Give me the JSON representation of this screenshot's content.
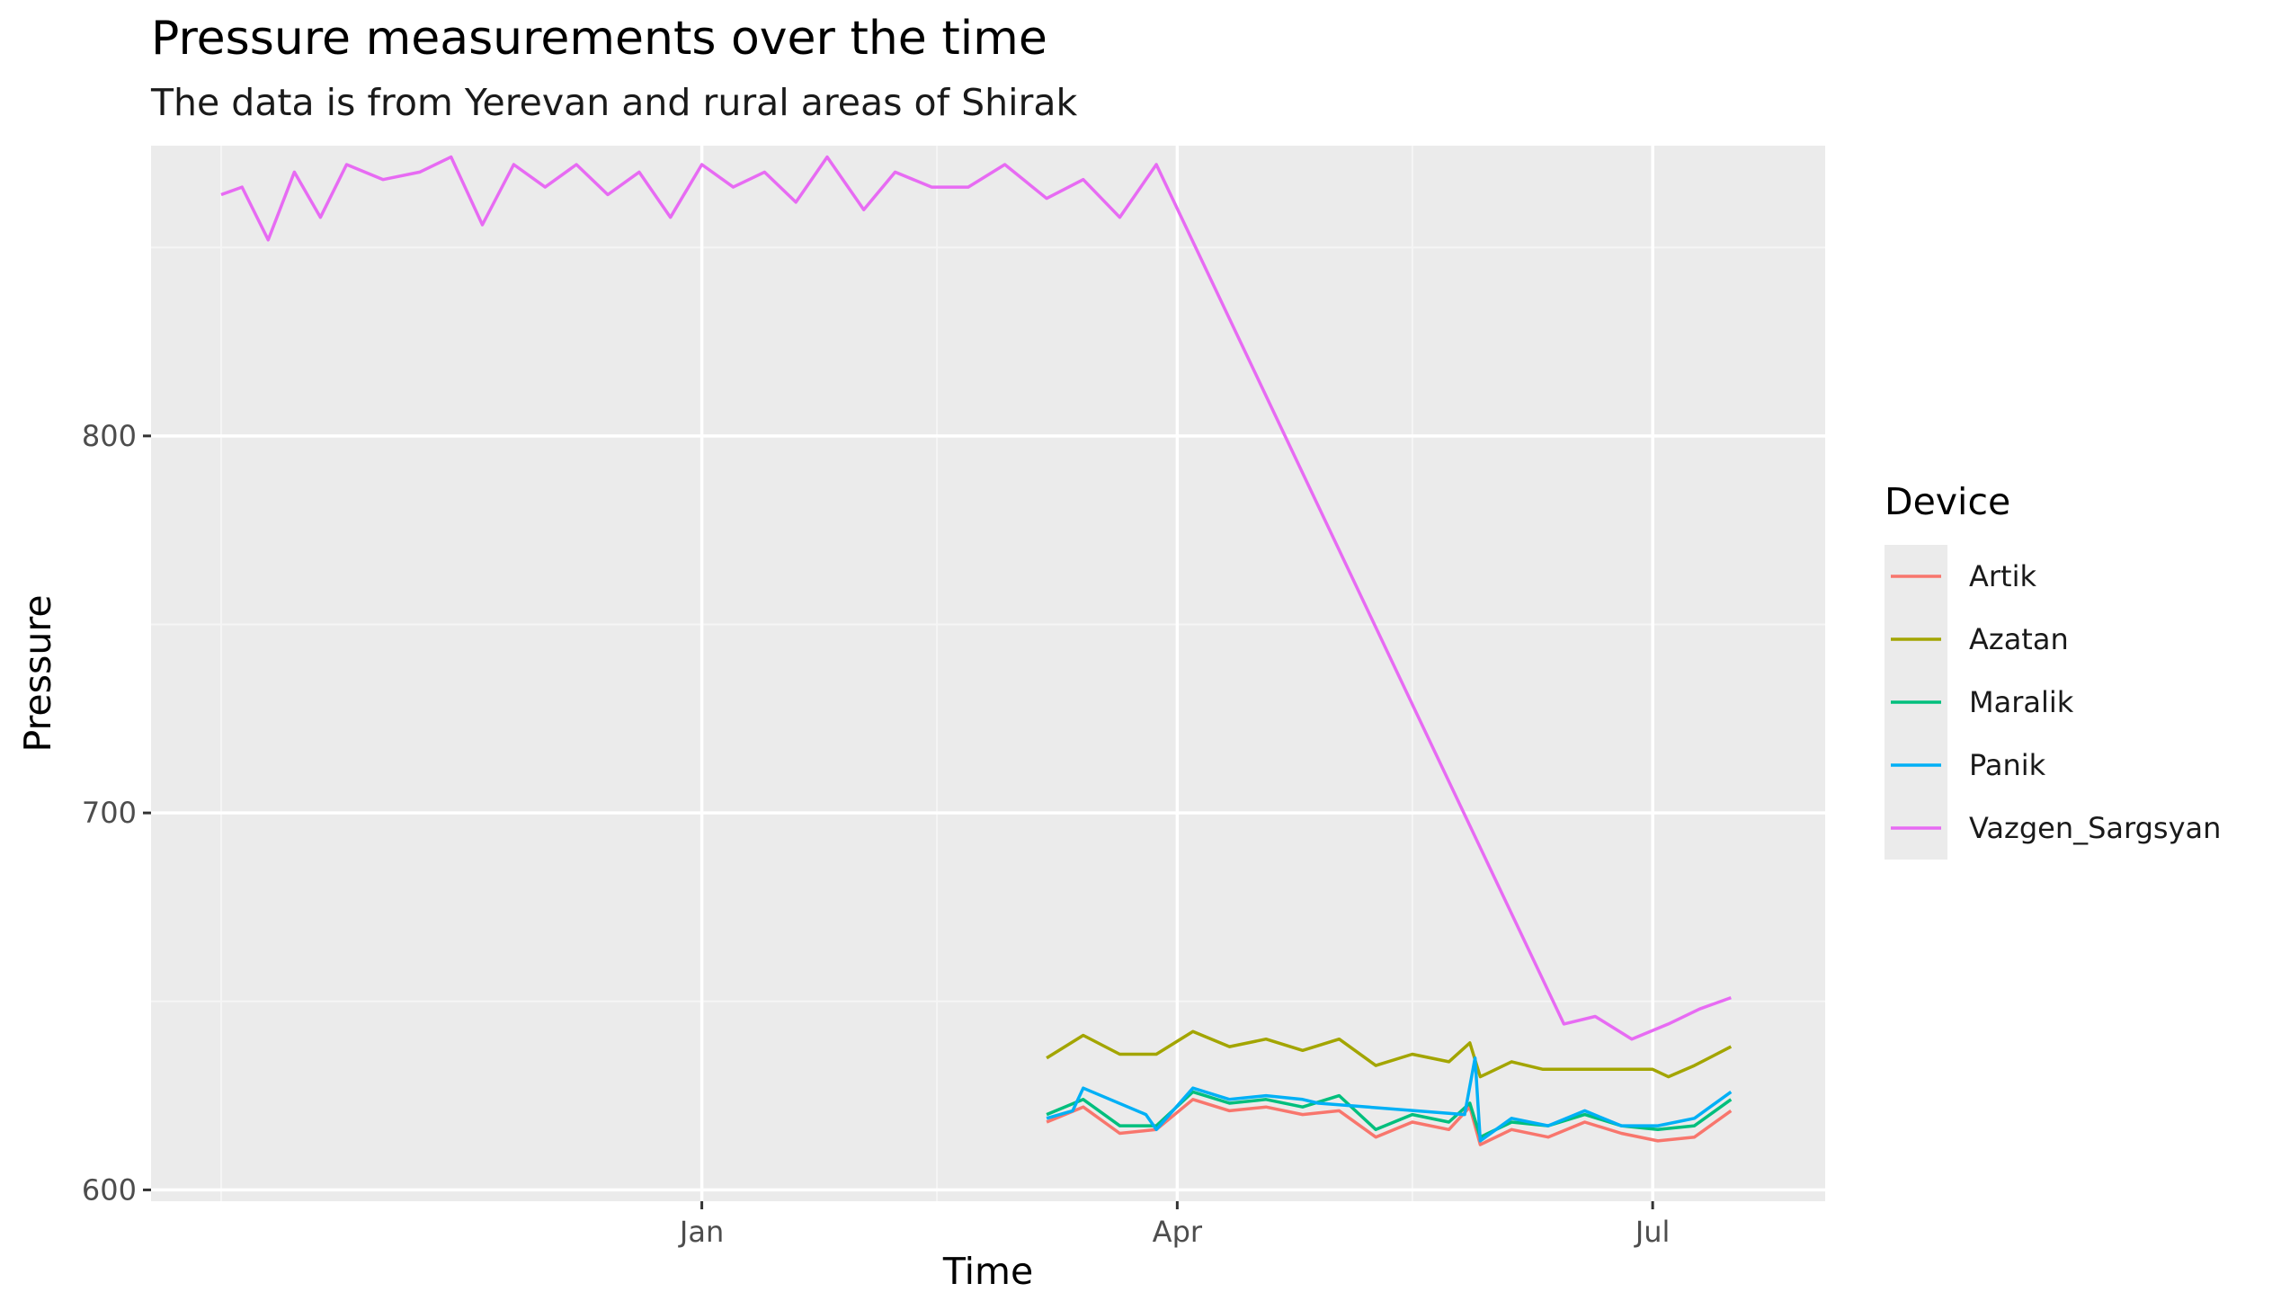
{
  "chart_data": {
    "type": "line",
    "title": "Pressure measurements over the time",
    "subtitle": "The data is from Yerevan and rural areas of Shirak",
    "xlabel": "Time",
    "ylabel": "Pressure",
    "x_ticks": [
      {
        "label": "Jan",
        "value": "Jan"
      },
      {
        "label": "Apr",
        "value": "Apr"
      },
      {
        "label": "Jul",
        "value": "Jul"
      }
    ],
    "x_domain": [
      "Oct 1",
      "Jul 17"
    ],
    "y_ticks": [
      600,
      700,
      800
    ],
    "ylim": [
      597,
      877
    ],
    "grid": true,
    "legend": {
      "title": "Device",
      "position": "right"
    },
    "series": [
      {
        "name": "Artik",
        "color": "#F8766D",
        "points": [
          [
            "Mar 7",
            618
          ],
          [
            "Mar 14",
            622
          ],
          [
            "Mar 21",
            615
          ],
          [
            "Mar 28",
            616
          ],
          [
            "Apr 4",
            624
          ],
          [
            "Apr 11",
            621
          ],
          [
            "Apr 18",
            622
          ],
          [
            "Apr 25",
            620
          ],
          [
            "May 2",
            621
          ],
          [
            "May 9",
            614
          ],
          [
            "May 16",
            618
          ],
          [
            "May 23",
            616
          ],
          [
            "May 27",
            622
          ],
          [
            "May 29",
            612
          ],
          [
            "Jun 4",
            616
          ],
          [
            "Jun 11",
            614
          ],
          [
            "Jun 18",
            618
          ],
          [
            "Jun 25",
            615
          ],
          [
            "Jul 2",
            613
          ],
          [
            "Jul 9",
            614
          ],
          [
            "Jul 16",
            621
          ]
        ]
      },
      {
        "name": "Azatan",
        "color": "#A3A500",
        "points": [
          [
            "Mar 7",
            635
          ],
          [
            "Mar 14",
            641
          ],
          [
            "Mar 21",
            636
          ],
          [
            "Mar 28",
            636
          ],
          [
            "Apr 4",
            642
          ],
          [
            "Apr 11",
            638
          ],
          [
            "Apr 18",
            640
          ],
          [
            "Apr 25",
            637
          ],
          [
            "May 2",
            640
          ],
          [
            "May 9",
            633
          ],
          [
            "May 16",
            636
          ],
          [
            "May 23",
            634
          ],
          [
            "May 27",
            639
          ],
          [
            "May 29",
            630
          ],
          [
            "Jun 4",
            634
          ],
          [
            "Jun 10",
            632
          ],
          [
            "Jul 1",
            632
          ],
          [
            "Jul 4",
            630
          ],
          [
            "Jul 9",
            633
          ],
          [
            "Jul 16",
            638
          ]
        ]
      },
      {
        "name": "Maralik",
        "color": "#00BF7D",
        "points": [
          [
            "Mar 7",
            620
          ],
          [
            "Mar 14",
            624
          ],
          [
            "Mar 21",
            617
          ],
          [
            "Mar 28",
            617
          ],
          [
            "Apr 4",
            626
          ],
          [
            "Apr 11",
            623
          ],
          [
            "Apr 18",
            624
          ],
          [
            "Apr 25",
            622
          ],
          [
            "May 2",
            625
          ],
          [
            "May 9",
            616
          ],
          [
            "May 16",
            620
          ],
          [
            "May 23",
            618
          ],
          [
            "May 27",
            623
          ],
          [
            "May 29",
            614
          ],
          [
            "Jun 4",
            618
          ],
          [
            "Jun 11",
            617
          ],
          [
            "Jun 18",
            620
          ],
          [
            "Jun 25",
            617
          ],
          [
            "Jul 2",
            616
          ],
          [
            "Jul 9",
            617
          ],
          [
            "Jul 16",
            624
          ]
        ]
      },
      {
        "name": "Panik",
        "color": "#00B0F6",
        "points": [
          [
            "Mar 7",
            619
          ],
          [
            "Mar 12",
            621
          ],
          [
            "Mar 14",
            627
          ],
          [
            "Mar 26",
            620
          ],
          [
            "Mar 28",
            616
          ],
          [
            "Apr 4",
            627
          ],
          [
            "Apr 11",
            624
          ],
          [
            "Apr 18",
            625
          ],
          [
            "Apr 25",
            624
          ],
          [
            "Apr 28",
            623
          ],
          [
            "May 26",
            620
          ],
          [
            "May 28",
            635
          ],
          [
            "May 29",
            613
          ],
          [
            "Jun 4",
            619
          ],
          [
            "Jun 11",
            617
          ],
          [
            "Jun 18",
            621
          ],
          [
            "Jun 25",
            617
          ],
          [
            "Jul 2",
            617
          ],
          [
            "Jul 9",
            619
          ],
          [
            "Jul 16",
            626
          ]
        ]
      },
      {
        "name": "Vazgen_Sargsyan",
        "color": "#E76BF3",
        "points": [
          [
            "Oct 1",
            864
          ],
          [
            "Oct 5",
            866
          ],
          [
            "Oct 10",
            852
          ],
          [
            "Oct 15",
            870
          ],
          [
            "Oct 20",
            858
          ],
          [
            "Oct 25",
            872
          ],
          [
            "Nov 1",
            868
          ],
          [
            "Nov 8",
            870
          ],
          [
            "Nov 14",
            874
          ],
          [
            "Nov 20",
            856
          ],
          [
            "Nov 26",
            872
          ],
          [
            "Dec 2",
            866
          ],
          [
            "Dec 8",
            872
          ],
          [
            "Dec 14",
            864
          ],
          [
            "Dec 20",
            870
          ],
          [
            "Dec 26",
            858
          ],
          [
            "Jan 1",
            872
          ],
          [
            "Jan 7",
            866
          ],
          [
            "Jan 13",
            870
          ],
          [
            "Jan 19",
            862
          ],
          [
            "Jan 25",
            874
          ],
          [
            "Feb 1",
            860
          ],
          [
            "Feb 7",
            870
          ],
          [
            "Feb 14",
            866
          ],
          [
            "Feb 21",
            866
          ],
          [
            "Feb 28",
            872
          ],
          [
            "Mar 7",
            863
          ],
          [
            "Mar 14",
            868
          ],
          [
            "Mar 21",
            858
          ],
          [
            "Mar 28",
            872
          ],
          [
            "Jun 14",
            644
          ],
          [
            "Jun 20",
            646
          ],
          [
            "Jun 27",
            640
          ],
          [
            "Jul 4",
            644
          ],
          [
            "Jul 10",
            648
          ],
          [
            "Jul 16",
            651
          ]
        ]
      }
    ]
  }
}
